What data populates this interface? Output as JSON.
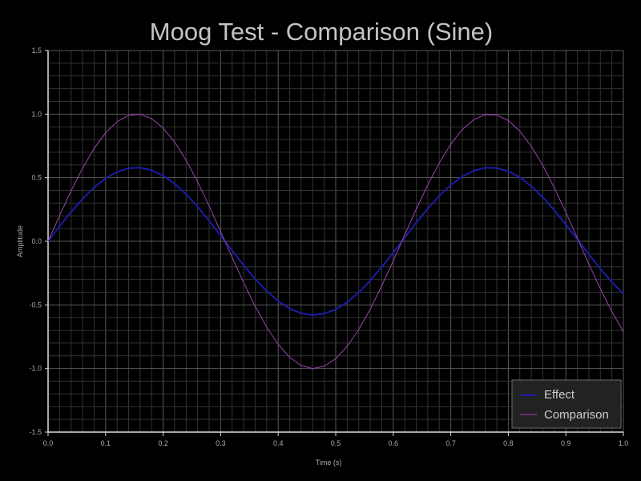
{
  "chart_data": {
    "type": "line",
    "title": "Moog Test - Comparison (Sine)",
    "xlabel": "Time (s)",
    "ylabel": "Amplitude",
    "xlim": [
      0,
      1.0
    ],
    "ylim": [
      -1.5,
      1.5
    ],
    "x_ticks": [
      "0.0",
      "0.1",
      "0.2",
      "0.3",
      "0.4",
      "0.5",
      "0.6",
      "0.7",
      "0.8",
      "0.9",
      "1.0"
    ],
    "y_ticks": [
      "1.5",
      "1.0",
      "0.5",
      "0.0",
      "-0.5",
      "-1.0",
      "-1.5"
    ],
    "grid": true,
    "legend_position": "bottom-right",
    "x": [
      0,
      0.02,
      0.04,
      0.06,
      0.08,
      0.1,
      0.12,
      0.14,
      0.16,
      0.18,
      0.2,
      0.22,
      0.24,
      0.26,
      0.28,
      0.3,
      0.32,
      0.34,
      0.36,
      0.38,
      0.4,
      0.42,
      0.44,
      0.46,
      0.48,
      0.5,
      0.52,
      0.54,
      0.56,
      0.58,
      0.6,
      0.62,
      0.64,
      0.66,
      0.68,
      0.7,
      0.72,
      0.74,
      0.76,
      0.78,
      0.8,
      0.82,
      0.84,
      0.86,
      0.88,
      0.9,
      0.92,
      0.94,
      0.96,
      0.98,
      1.0
    ],
    "series": [
      {
        "name": "Effect",
        "color": "#1c1ca8",
        "values": [
          0,
          0.118,
          0.23,
          0.334,
          0.423,
          0.495,
          0.546,
          0.574,
          0.579,
          0.559,
          0.516,
          0.452,
          0.37,
          0.271,
          0.161,
          0.044,
          -0.074,
          -0.189,
          -0.296,
          -0.391,
          -0.47,
          -0.529,
          -0.566,
          -0.58,
          -0.569,
          -0.535,
          -0.479,
          -0.402,
          -0.309,
          -0.203,
          -0.089,
          0.03,
          0.147,
          0.257,
          0.357,
          0.443,
          0.51,
          0.555,
          0.578,
          0.576,
          0.551,
          0.502,
          0.433,
          0.346,
          0.244,
          0.132,
          0.015,
          -0.103,
          -0.216,
          -0.32,
          -0.412
        ]
      },
      {
        "name": "Comparison",
        "color": "#9b45b0",
        "values": [
          0,
          0.203,
          0.397,
          0.575,
          0.729,
          0.853,
          0.941,
          0.99,
          0.998,
          0.964,
          0.89,
          0.779,
          0.637,
          0.467,
          0.277,
          0.077,
          -0.127,
          -0.326,
          -0.511,
          -0.675,
          -0.81,
          -0.913,
          -0.977,
          -1.0,
          -0.982,
          -0.923,
          -0.825,
          -0.693,
          -0.533,
          -0.35,
          -0.153,
          0.051,
          0.253,
          0.444,
          0.616,
          0.763,
          0.879,
          0.957,
          0.996,
          0.993,
          0.95,
          0.866,
          0.747,
          0.596,
          0.421,
          0.228,
          0.026,
          -0.178,
          -0.373,
          -0.552,
          -0.711
        ]
      }
    ]
  }
}
